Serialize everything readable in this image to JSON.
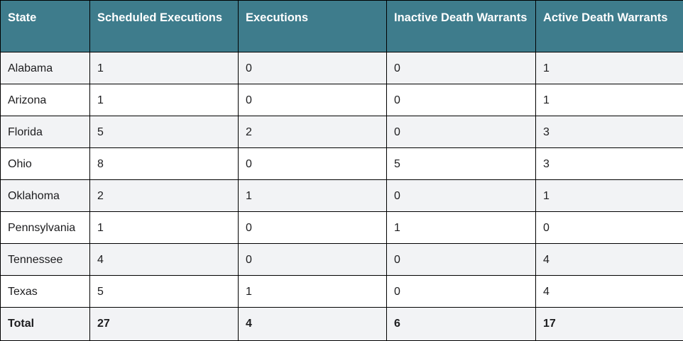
{
  "colors": {
    "header_background": "#3e7c8c",
    "header_text": "#ffffff",
    "row_alt_background": "#f2f3f5",
    "row_background": "#ffffff",
    "border": "#000000",
    "body_text": "#1d1d1f"
  },
  "table": {
    "header": {
      "columns": [
        "State",
        "Scheduled Executions",
        "Executions",
        "Inactive Death Warrants",
        "Active Death Warrants"
      ]
    },
    "rows": [
      {
        "cells": [
          "Alabama",
          "1",
          "0",
          "0",
          "1"
        ]
      },
      {
        "cells": [
          "Arizona",
          "1",
          "0",
          "0",
          "1"
        ]
      },
      {
        "cells": [
          "Florida",
          "5",
          "2",
          "0",
          "3"
        ]
      },
      {
        "cells": [
          "Ohio",
          "8",
          "0",
          "5",
          "3"
        ]
      },
      {
        "cells": [
          "Oklahoma",
          "2",
          "1",
          "0",
          "1"
        ]
      },
      {
        "cells": [
          "Pennsylvania",
          "1",
          "0",
          "1",
          "0"
        ]
      },
      {
        "cells": [
          "Tennessee",
          "4",
          "0",
          "0",
          "4"
        ]
      },
      {
        "cells": [
          "Texas",
          "5",
          "1",
          "0",
          "4"
        ]
      }
    ],
    "total_row": {
      "cells": [
        "Total",
        "27",
        "4",
        "6",
        "17"
      ]
    }
  },
  "chart_data": {
    "type": "table",
    "columns": [
      "State",
      "Scheduled Executions",
      "Executions",
      "Inactive Death Warrants",
      "Active Death Warrants"
    ],
    "rows": [
      [
        "Alabama",
        1,
        0,
        0,
        1
      ],
      [
        "Arizona",
        1,
        0,
        0,
        1
      ],
      [
        "Florida",
        5,
        2,
        0,
        3
      ],
      [
        "Ohio",
        8,
        0,
        5,
        3
      ],
      [
        "Oklahoma",
        2,
        1,
        0,
        1
      ],
      [
        "Pennsylvania",
        1,
        0,
        1,
        0
      ],
      [
        "Tennessee",
        4,
        0,
        0,
        4
      ],
      [
        "Texas",
        5,
        1,
        0,
        4
      ]
    ],
    "total": [
      "Total",
      27,
      4,
      6,
      17
    ],
    "layout_hints": {
      "zebra_striping": true,
      "header_style": "teal-background-white-text",
      "total_row_bold": true
    }
  }
}
